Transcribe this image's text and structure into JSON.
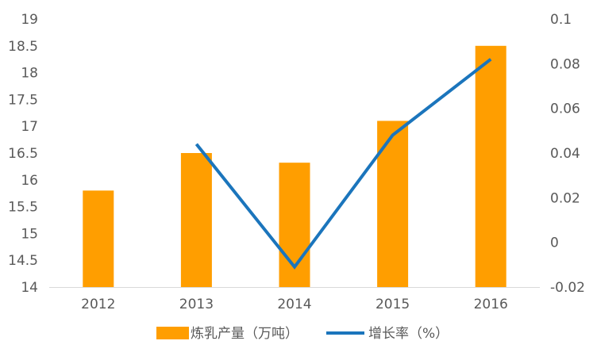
{
  "chart_data": {
    "type": "bar",
    "categories": [
      "2012",
      "2013",
      "2014",
      "2015",
      "2016"
    ],
    "series": [
      {
        "name": "炼乳产量（万吨）",
        "type": "bar",
        "axis": "left",
        "color": "#FF9E00",
        "values": [
          15.8,
          16.5,
          16.32,
          17.1,
          18.5
        ]
      },
      {
        "name": "增长率（%）",
        "type": "line",
        "axis": "right",
        "color": "#1B75BC",
        "values": [
          null,
          0.044,
          -0.011,
          0.048,
          0.082
        ]
      }
    ],
    "y_left": {
      "range": [
        14,
        19
      ],
      "ticks": [
        "14",
        "14.5",
        "15",
        "15.5",
        "16",
        "16.5",
        "17",
        "17.5",
        "18",
        "18.5",
        "19"
      ]
    },
    "y_right": {
      "range": [
        -0.02,
        0.1
      ],
      "ticks": [
        "-0.02",
        "0",
        "0.02",
        "0.04",
        "0.06",
        "0.08",
        "0.1"
      ]
    },
    "grid": false,
    "legend_position": "bottom"
  }
}
